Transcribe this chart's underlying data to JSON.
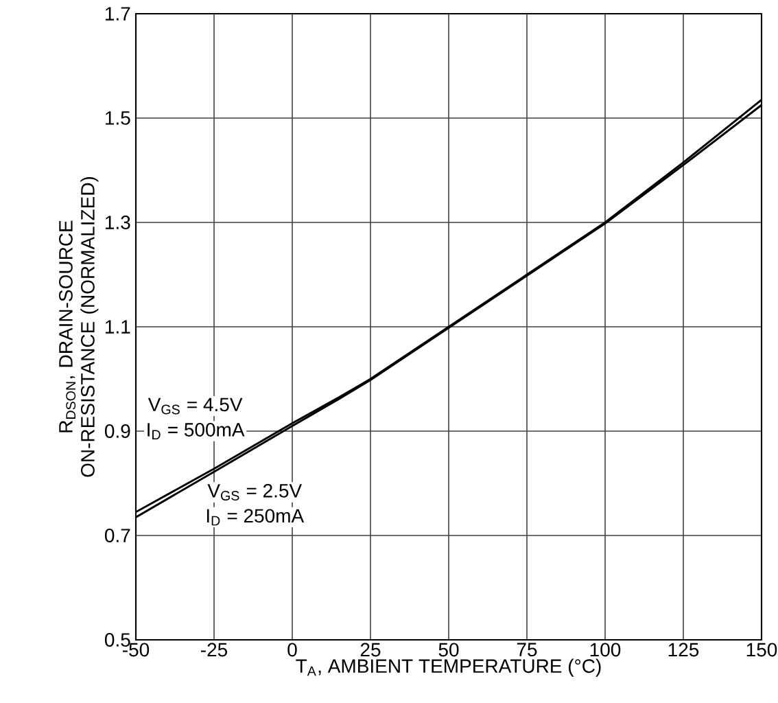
{
  "chart_data": {
    "type": "line",
    "xlabel": "T$_{A}$, AMBIENT TEMPERATURE (°C)",
    "ylabel": "R$_{DSON}$, DRAIN-SOURCE ON-RESISTANCE (NORMALIZED)",
    "x": [
      -50,
      -25,
      0,
      15,
      25,
      50,
      75,
      100,
      125,
      150
    ],
    "series": [
      {
        "color": "#000000",
        "values": [
          0.745,
          0.828,
          0.915,
          0.965,
          1.0,
          1.1,
          1.2,
          1.3,
          1.415,
          1.535
        ]
      },
      {
        "color": "#000000",
        "values": [
          0.735,
          0.822,
          0.91,
          0.962,
          0.998,
          1.098,
          1.198,
          1.298,
          1.41,
          1.525
        ]
      }
    ],
    "xlim": [
      -50,
      150
    ],
    "xticks": [
      -50,
      -25,
      0,
      25,
      50,
      75,
      100,
      125,
      150
    ],
    "ylim": [
      0.5,
      1.7
    ],
    "yticks": [
      0.5,
      0.7,
      0.9,
      1.1,
      1.3,
      1.5,
      1.7
    ],
    "grid": true,
    "marker": "none",
    "line_style": "solid",
    "annotations": [
      "V$_{GS}$ = 4.5V",
      "I$_{D}$ = 500mA",
      "V$_{GS}$ = 2.5V",
      "I$_{D}$ = 250mA"
    ]
  }
}
